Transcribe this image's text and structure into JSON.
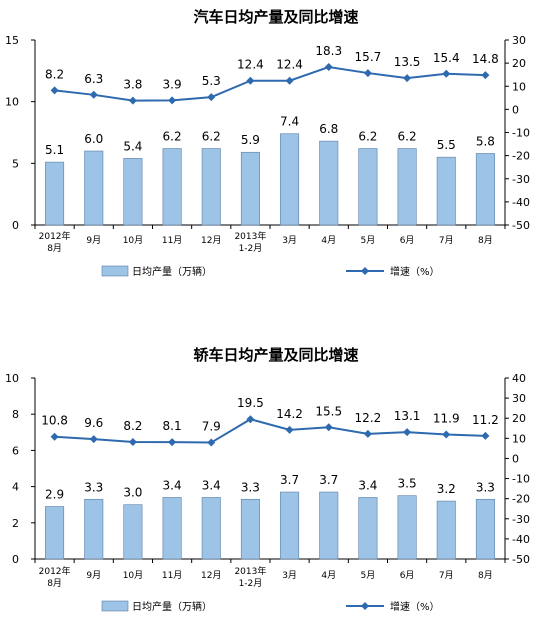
{
  "chart_data": [
    {
      "type": "bar",
      "title": "汽车日均产量及同比增速",
      "categories": [
        "2012年|8月",
        "9月",
        "10月",
        "11月",
        "12月",
        "2013年|1-2月",
        "3月",
        "4月",
        "5月",
        "6月",
        "7月",
        "8月"
      ],
      "series": [
        {
          "name": "日均产量（万辆）",
          "type": "bar",
          "axis": "left",
          "values": [
            5.1,
            6.0,
            5.4,
            6.2,
            6.2,
            5.9,
            7.4,
            6.8,
            6.2,
            6.2,
            5.5,
            5.8
          ],
          "labels": [
            "5.1",
            "6.0",
            "5.4",
            "6.2",
            "6.2",
            "5.9",
            "7.4",
            "6.8",
            "6.2",
            "6.2",
            "5.5",
            "5.8"
          ]
        },
        {
          "name": "增速（%）",
          "type": "line",
          "axis": "right",
          "values": [
            8.2,
            6.3,
            3.8,
            3.9,
            5.3,
            12.4,
            12.4,
            18.3,
            15.7,
            13.5,
            15.4,
            14.8
          ],
          "labels": [
            "8.2",
            "6.3",
            "3.8",
            "3.9",
            "5.3",
            "12.4",
            "12.4",
            "18.3",
            "15.7",
            "13.5",
            "15.4",
            "14.8"
          ]
        }
      ],
      "left_axis": {
        "min": 0,
        "max": 15,
        "ticks": [
          "0",
          "5",
          "10",
          "15"
        ]
      },
      "right_axis": {
        "min": -50,
        "max": 30,
        "ticks": [
          "-50",
          "-40",
          "-30",
          "-20",
          "-10",
          "0",
          "10",
          "20",
          "30"
        ]
      },
      "legend_position": "bottom",
      "colors": {
        "bar": "#9DC3E6",
        "bar_stroke": "#5B7FA6",
        "line": "#2E6AAF"
      }
    },
    {
      "type": "bar",
      "title": "轿车日均产量及同比增速",
      "categories": [
        "2012年|8月",
        "9月",
        "10月",
        "11月",
        "12月",
        "2013年|1-2月",
        "3月",
        "4月",
        "5月",
        "6月",
        "7月",
        "8月"
      ],
      "series": [
        {
          "name": "日均产量（万辆）",
          "type": "bar",
          "axis": "left",
          "values": [
            2.9,
            3.3,
            3.0,
            3.4,
            3.4,
            3.3,
            3.7,
            3.7,
            3.4,
            3.5,
            3.2,
            3.3
          ],
          "labels": [
            "2.9",
            "3.3",
            "3.0",
            "3.4",
            "3.4",
            "3.3",
            "3.7",
            "3.7",
            "3.4",
            "3.5",
            "3.2",
            "3.3"
          ]
        },
        {
          "name": "增速（%）",
          "type": "line",
          "axis": "right",
          "values": [
            10.8,
            9.6,
            8.2,
            8.1,
            7.9,
            19.5,
            14.2,
            15.5,
            12.2,
            13.1,
            11.9,
            11.2
          ],
          "labels": [
            "10.8",
            "9.6",
            "8.2",
            "8.1",
            "7.9",
            "19.5",
            "14.2",
            "15.5",
            "12.2",
            "13.1",
            "11.9",
            "11.2"
          ]
        }
      ],
      "left_axis": {
        "min": 0,
        "max": 10,
        "ticks": [
          "0",
          "2",
          "4",
          "6",
          "8",
          "10"
        ]
      },
      "right_axis": {
        "min": -50,
        "max": 40,
        "ticks": [
          "-50",
          "-40",
          "-30",
          "-20",
          "-10",
          "0",
          "10",
          "20",
          "30",
          "40"
        ]
      },
      "legend_position": "bottom",
      "colors": {
        "bar": "#9DC3E6",
        "bar_stroke": "#5B7FA6",
        "line": "#2E6AAF"
      }
    }
  ]
}
